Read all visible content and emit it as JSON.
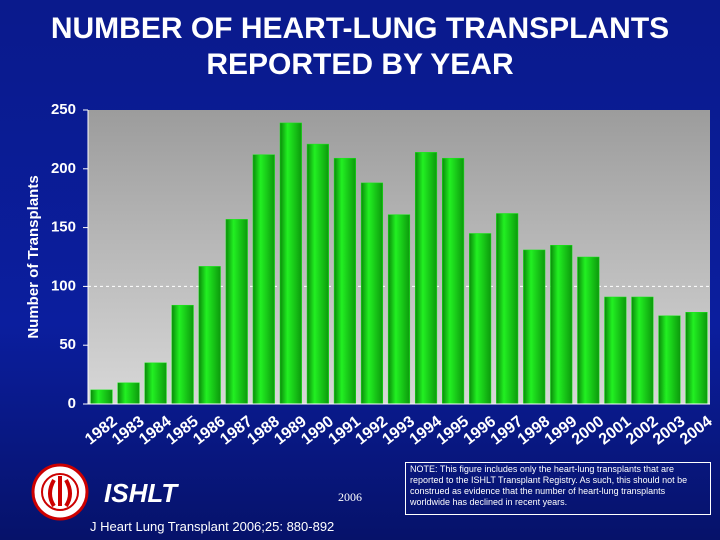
{
  "chart_data": {
    "type": "bar",
    "title": "NUMBER OF HEART-LUNG TRANSPLANTS REPORTED BY YEAR",
    "ylabel": "Number of Transplants",
    "categories": [
      "1982",
      "1983",
      "1984",
      "1985",
      "1986",
      "1987",
      "1988",
      "1989",
      "1990",
      "1991",
      "1992",
      "1993",
      "1994",
      "1995",
      "1996",
      "1997",
      "1998",
      "1999",
      "2000",
      "2001",
      "2002",
      "2003",
      "2004"
    ],
    "values": [
      12,
      18,
      35,
      84,
      117,
      157,
      212,
      239,
      221,
      209,
      188,
      161,
      214,
      209,
      145,
      162,
      131,
      135,
      125,
      91,
      91,
      75,
      78
    ],
    "color": "#18e818",
    "ylim": [
      0,
      250
    ],
    "yticks": [
      0,
      50,
      100,
      150,
      200,
      250
    ],
    "reference_line": 100
  },
  "footer": {
    "organization": "ISHLT",
    "year": "2006",
    "source": "J Heart Lung Transplant 2006;25: 880-892",
    "note": "NOTE: This figure includes only the heart-lung transplants that are reported to the ISHLT Transplant Registry.  As such, this should not be construed as evidence that the number of heart-lung transplants worldwide has declined in recent years."
  }
}
